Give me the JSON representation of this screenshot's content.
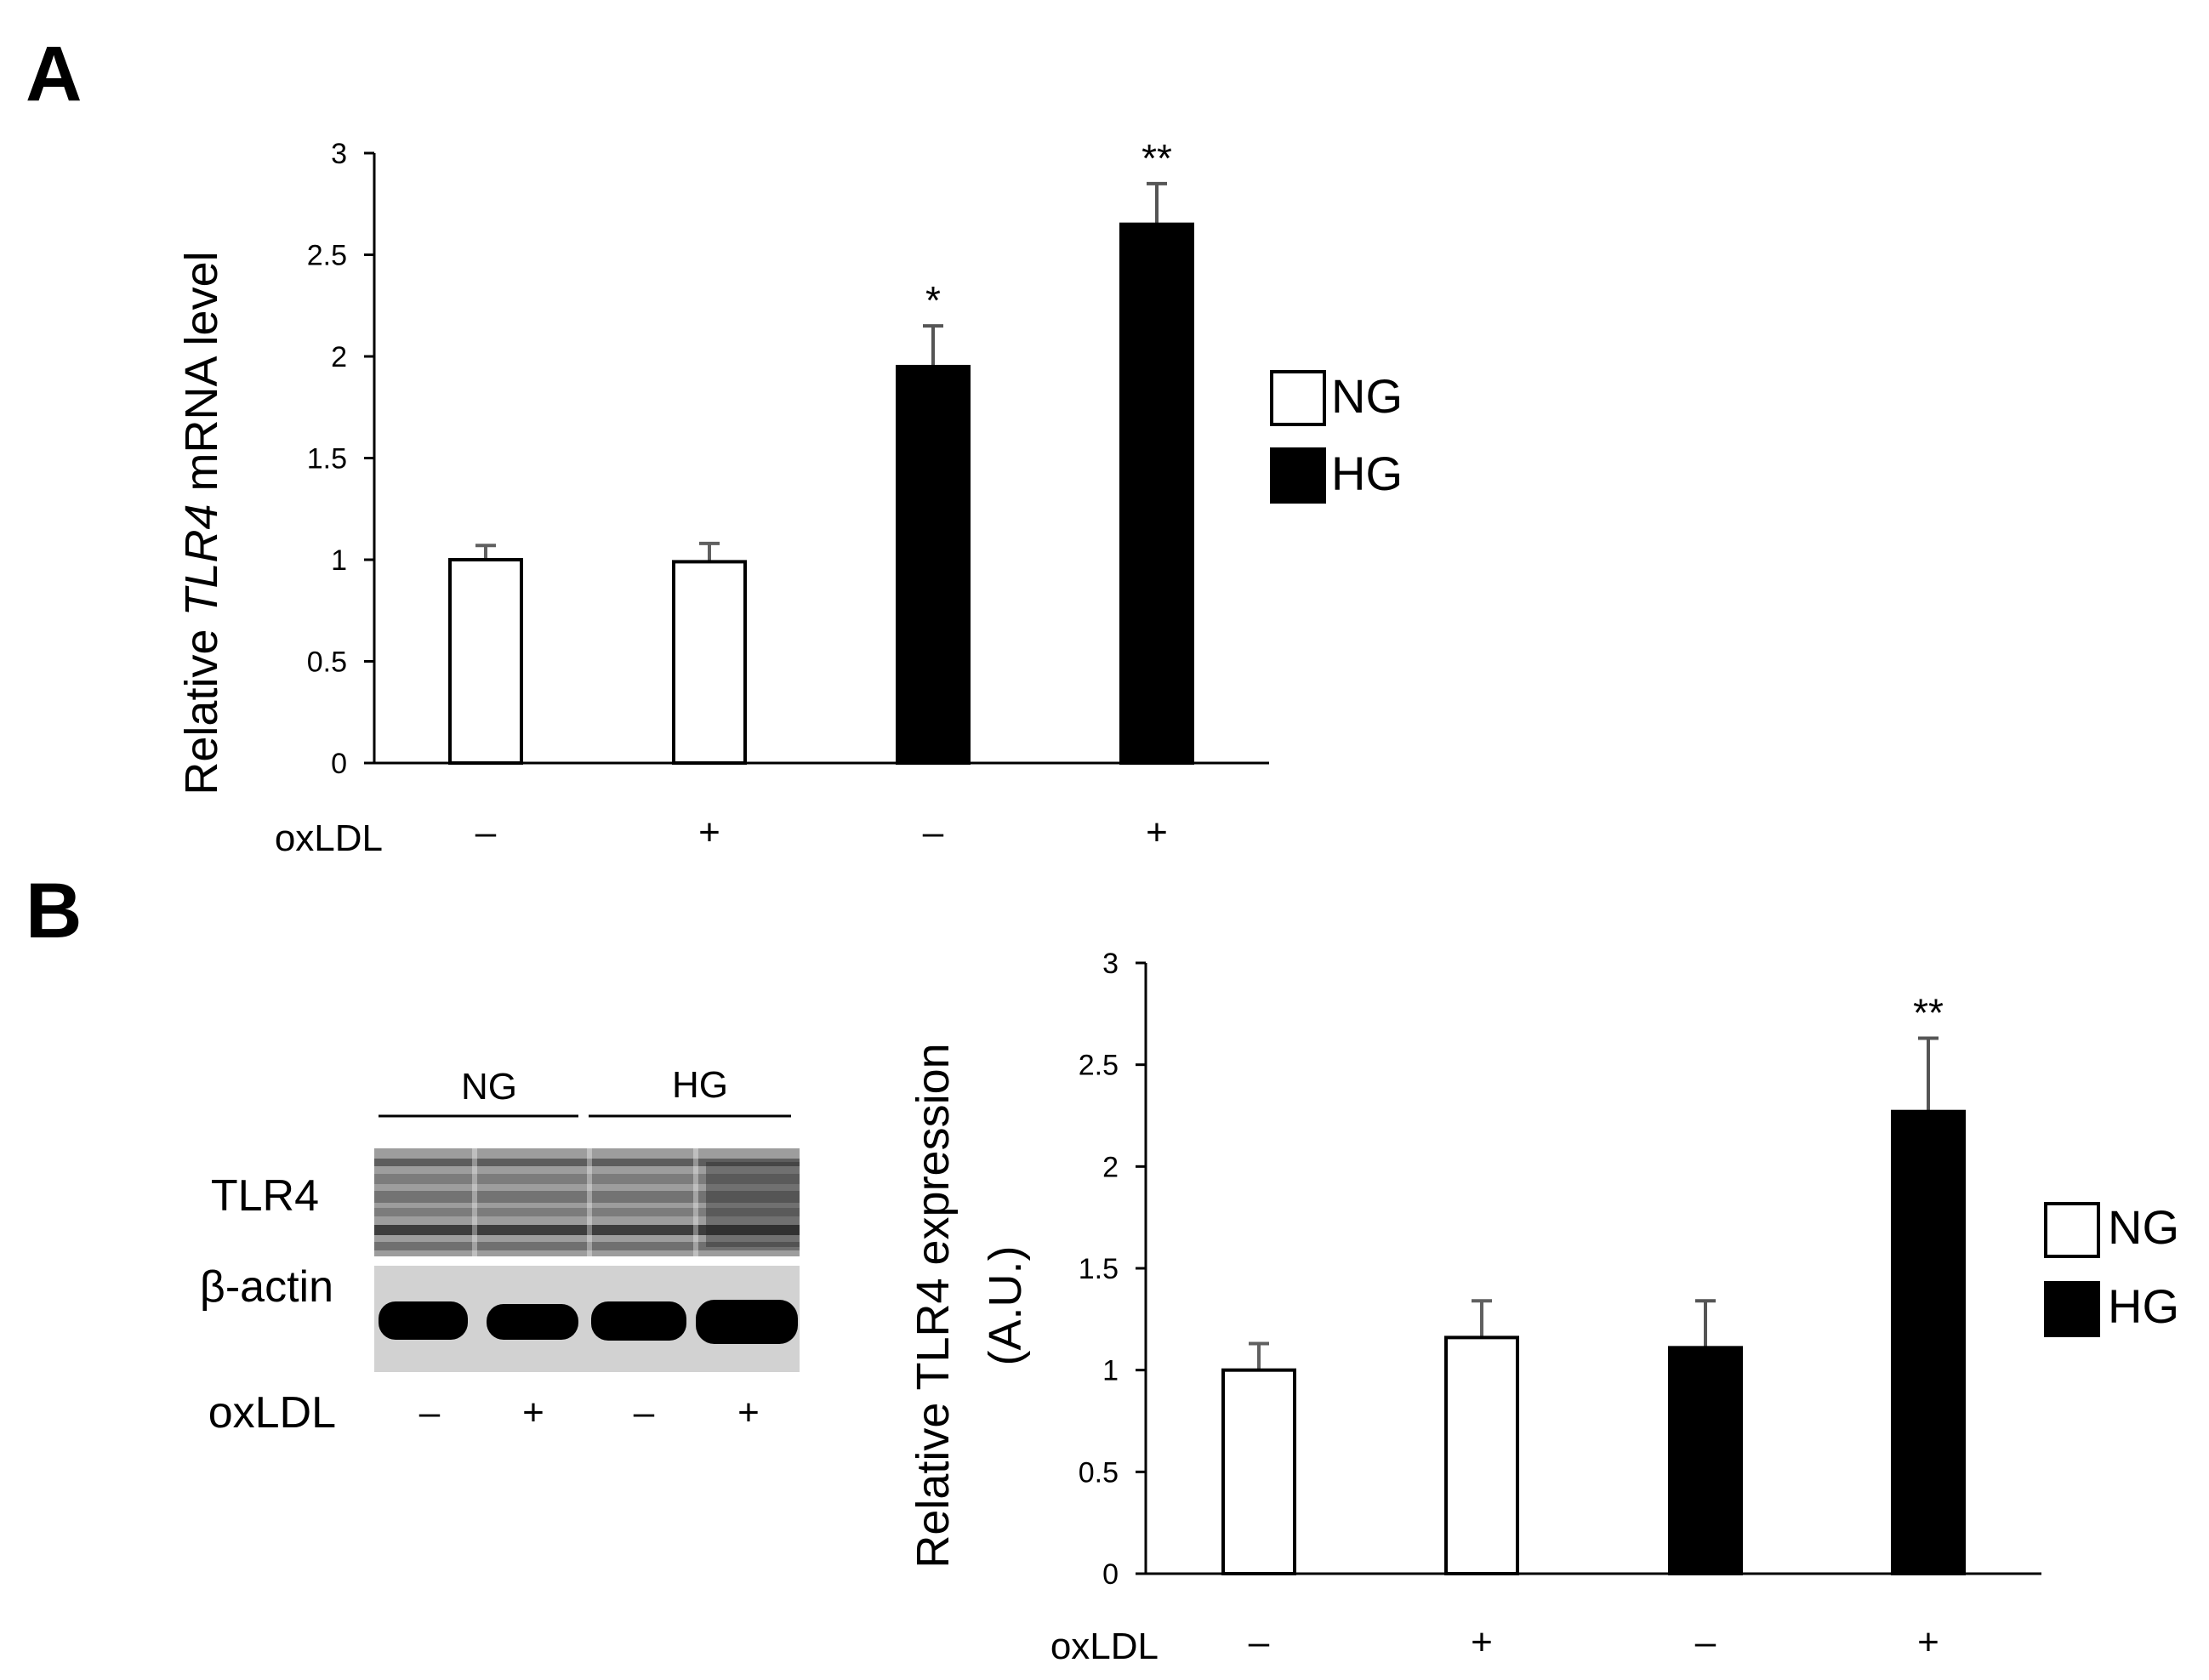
{
  "panels": {
    "a": {
      "letter": "A"
    },
    "b": {
      "letter": "B"
    }
  },
  "legend": {
    "ng_label": "NG",
    "hg_label": "HG",
    "ng_color": "#ffffff",
    "hg_color": "#000000"
  },
  "blot": {
    "group_ng": "NG",
    "group_hg": "HG",
    "row_tlr4": "TLR4",
    "row_actin": "β-actin",
    "oxldl_label": "oxLDL",
    "oxldl_signs": [
      "–",
      "+",
      "–",
      "+"
    ]
  },
  "chart_data": [
    {
      "type": "bar",
      "panel": "A",
      "ylabel_prefix": "Relative ",
      "ylabel_italic": "TLR4",
      "ylabel_suffix": " mRNA level",
      "xlabel": "oxLDL",
      "categories": [
        "–",
        "+",
        "–",
        "+"
      ],
      "groups": [
        "NG",
        "NG",
        "HG",
        "HG"
      ],
      "values": [
        1.0,
        0.99,
        1.95,
        2.65
      ],
      "errors": [
        0.07,
        0.09,
        0.2,
        0.2
      ],
      "significance": [
        "",
        "",
        "*",
        "**"
      ],
      "ylim": [
        0,
        3
      ],
      "yticks": [
        0,
        0.5,
        1,
        1.5,
        2,
        2.5,
        3
      ],
      "ytick_labels": [
        "0",
        "0.5",
        "1",
        "1.5",
        "2",
        "2.5",
        "3"
      ],
      "legend_position": "right",
      "grid": false
    },
    {
      "type": "bar",
      "panel": "B",
      "ylabel_line1": "Relative TLR4 expression",
      "ylabel_line2": "(A.U.)",
      "xlabel": "oxLDL",
      "categories": [
        "–",
        "+",
        "–",
        "+"
      ],
      "groups": [
        "NG",
        "NG",
        "HG",
        "HG"
      ],
      "values": [
        1.0,
        1.16,
        1.11,
        2.27
      ],
      "errors": [
        0.13,
        0.18,
        0.23,
        0.36
      ],
      "significance": [
        "",
        "",
        "",
        "**"
      ],
      "ylim": [
        0,
        3
      ],
      "yticks": [
        0,
        0.5,
        1,
        1.5,
        2,
        2.5,
        3
      ],
      "ytick_labels": [
        "0",
        "0.5",
        "1",
        "1.5",
        "2",
        "2.5",
        "3"
      ],
      "legend_position": "right",
      "grid": false
    }
  ]
}
